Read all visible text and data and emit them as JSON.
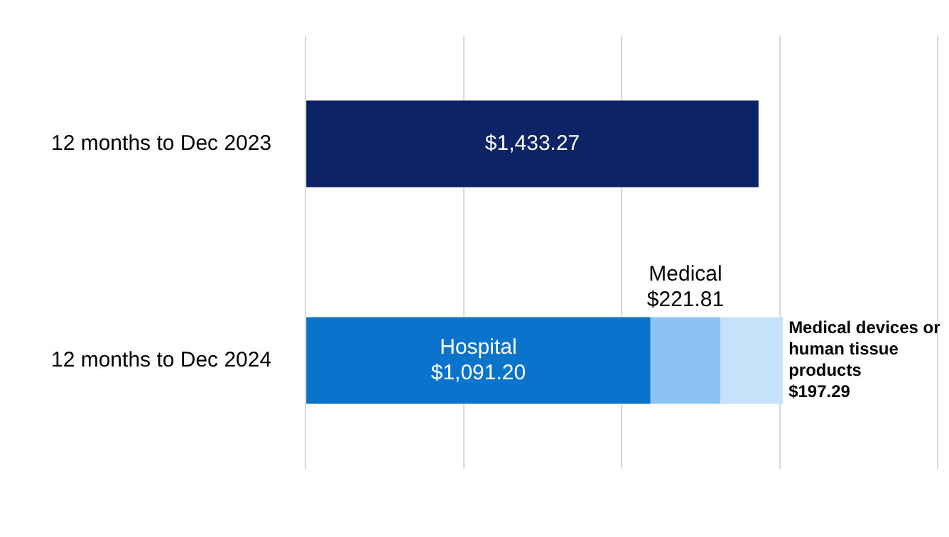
{
  "chart_data": {
    "type": "bar",
    "orientation": "horizontal",
    "stacked": true,
    "categories": [
      "12 months to Dec 2023",
      "12 months to Dec 2024"
    ],
    "series": [
      {
        "colors": [
          "#0c2365",
          "#0c2365"
        ],
        "values": [
          1433.27,
          null
        ],
        "value_labels": [
          "$1,433.27",
          null
        ]
      },
      {
        "name": "Hospital",
        "color": "#0a73cc",
        "values": [
          null,
          1091.2
        ],
        "value_labels": [
          null,
          "$1,091.20"
        ]
      },
      {
        "name": "Medical",
        "color": "#8cc3f5",
        "values": [
          null,
          221.81
        ],
        "value_labels": [
          null,
          "$221.81"
        ]
      },
      {
        "name": "Medical devices or human tissue products",
        "color": "#c6e2fb",
        "values": [
          null,
          197.29
        ],
        "value_labels": [
          null,
          "$197.29"
        ]
      }
    ],
    "xlim": [
      0,
      2000
    ],
    "xticks": [
      {
        "value": 0,
        "label": null
      },
      {
        "value": 500,
        "label": null
      },
      {
        "value": 1000,
        "label": null
      },
      {
        "value": 1500,
        "label": null
      },
      {
        "value": 2000,
        "label": null
      }
    ],
    "grid": "x",
    "tick_labels": "y",
    "legend": false
  }
}
